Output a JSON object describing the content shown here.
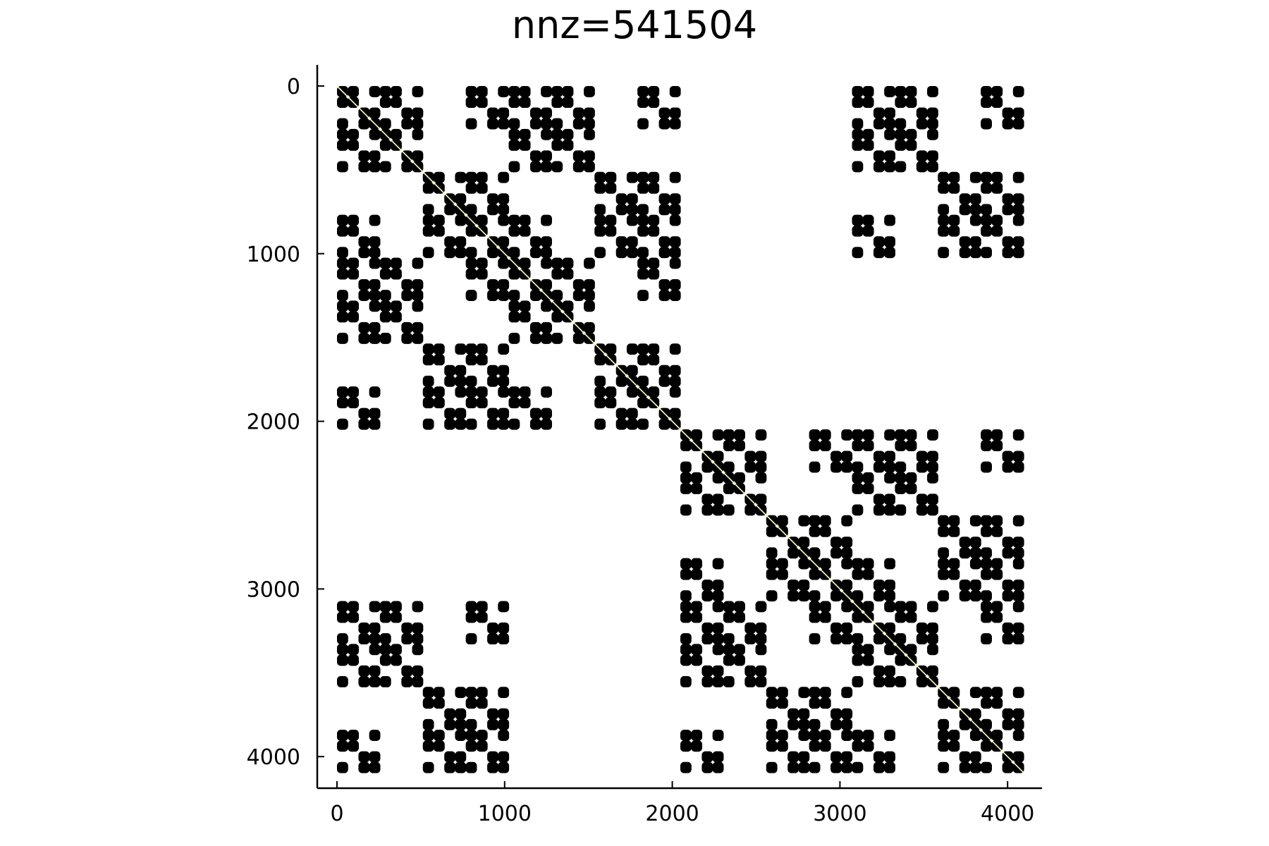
{
  "chart_data": {
    "type": "scatter",
    "subtype": "sparsity-pattern",
    "title": "nnz=541504",
    "xlabel": "",
    "ylabel": "",
    "matrix_size": 4096,
    "nnz": 541504,
    "xlim": [
      -128,
      4224
    ],
    "ylim": [
      -128,
      4224
    ],
    "y_inverted": true,
    "grid": false,
    "legend": "none",
    "xticks": [
      0,
      1000,
      2000,
      3000,
      4000
    ],
    "xtick_labels": [
      "0",
      "1000",
      "2000",
      "3000",
      "4000"
    ],
    "yticks": [
      0,
      1000,
      2000,
      3000,
      4000
    ],
    "ytick_labels": [
      "0",
      "1000",
      "2000",
      "3000",
      "4000"
    ],
    "marker_color": "#000000",
    "diagonal_color": "#ffffcc",
    "band_offsets_blocks": [
      0,
      4,
      12,
      16,
      32
    ],
    "block_size": 64,
    "structure": "hierarchical block pattern; nonzero 2x2 coarse blocks: (0,0),(0,1),(1,0),(1,1),(0,3),(2,2),(2,3),(3,0),(3,2),(3,3) repeated recursively over 4 levels (4096 = 4 x 4 x 4 x 4 x 16)"
  }
}
